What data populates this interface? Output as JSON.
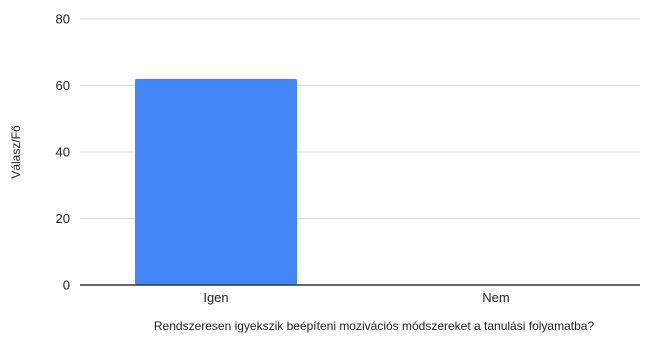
{
  "chart_data": {
    "type": "bar",
    "categories": [
      "Igen",
      "Nem"
    ],
    "series": [
      {
        "values": [
          62,
          0
        ],
        "color": "#4285f4"
      }
    ],
    "xlabel": "Rendszeresen igyekszik beépíteni mozivációs módszereket a tanulási folyamatba?",
    "ylabel": "Válasz/Fő",
    "ylim": [
      0,
      80
    ],
    "yticks": [
      0,
      20,
      40,
      60,
      80
    ],
    "grid": true,
    "gridColor": "#d9d9d9",
    "axisColor": "#333333"
  }
}
